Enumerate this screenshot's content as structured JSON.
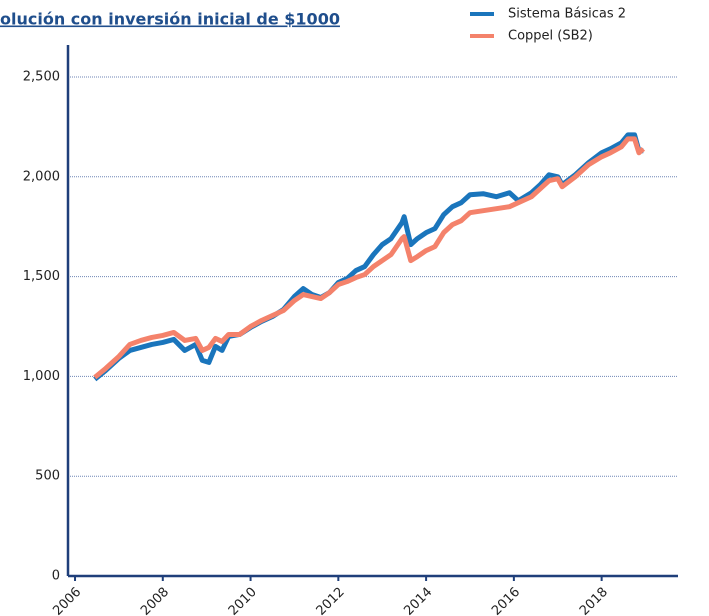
{
  "chart_data": {
    "type": "line",
    "title": "olución con inversión inicial de $1000",
    "x": [
      2006.45,
      2006.7,
      2007.0,
      2007.25,
      2007.5,
      2007.75,
      2008.0,
      2008.25,
      2008.5,
      2008.75,
      2008.9,
      2009.05,
      2009.2,
      2009.35,
      2009.5,
      2009.75,
      2010.0,
      2010.25,
      2010.5,
      2010.75,
      2011.0,
      2011.2,
      2011.4,
      2011.6,
      2011.8,
      2012.0,
      2012.2,
      2012.4,
      2012.6,
      2012.8,
      2013.0,
      2013.2,
      2013.45,
      2013.5,
      2013.65,
      2013.8,
      2014.0,
      2014.2,
      2014.4,
      2014.6,
      2014.8,
      2015.0,
      2015.3,
      2015.6,
      2015.9,
      2016.1,
      2016.4,
      2016.6,
      2016.8,
      2017.0,
      2017.1,
      2017.4,
      2017.7,
      2018.0,
      2018.2,
      2018.45,
      2018.6,
      2018.75,
      2018.85,
      2018.95
    ],
    "series": [
      {
        "name": "Sistema Básicas 2",
        "color": "#1a75bc",
        "values": [
          985,
          1030,
          1090,
          1130,
          1145,
          1160,
          1170,
          1185,
          1130,
          1160,
          1080,
          1070,
          1150,
          1130,
          1200,
          1210,
          1245,
          1275,
          1300,
          1335,
          1400,
          1440,
          1410,
          1395,
          1420,
          1470,
          1490,
          1530,
          1550,
          1610,
          1660,
          1690,
          1770,
          1800,
          1660,
          1690,
          1720,
          1740,
          1810,
          1850,
          1870,
          1910,
          1915,
          1900,
          1920,
          1880,
          1920,
          1960,
          2010,
          2000,
          1960,
          2010,
          2070,
          2120,
          2140,
          2170,
          2210,
          2210,
          2130,
          2130
        ]
      },
      {
        "name": "Coppel (SB2)",
        "color": "#f4826b",
        "values": [
          995,
          1040,
          1100,
          1160,
          1180,
          1195,
          1205,
          1220,
          1180,
          1190,
          1130,
          1145,
          1190,
          1175,
          1210,
          1210,
          1250,
          1280,
          1305,
          1330,
          1380,
          1410,
          1400,
          1390,
          1420,
          1460,
          1475,
          1495,
          1510,
          1550,
          1580,
          1610,
          1690,
          1700,
          1580,
          1600,
          1630,
          1650,
          1720,
          1760,
          1780,
          1820,
          1830,
          1840,
          1850,
          1870,
          1900,
          1940,
          1980,
          1990,
          1950,
          2000,
          2060,
          2100,
          2120,
          2150,
          2190,
          2190,
          2120,
          2140
        ]
      }
    ],
    "xlim": [
      2005.84,
      2019.74
    ],
    "xticks": [
      2006,
      2008,
      2010,
      2012,
      2014,
      2016,
      2018
    ],
    "ylim": [
      0,
      2660
    ],
    "yticks": [
      0,
      500,
      {
        "value": 1000,
        "label": "1,000"
      },
      {
        "value": 1500,
        "label": "1,500"
      },
      {
        "value": 2000,
        "label": "2,000"
      },
      {
        "value": 2500,
        "label": "2,500"
      }
    ],
    "grid": true,
    "legend": "top-right"
  }
}
